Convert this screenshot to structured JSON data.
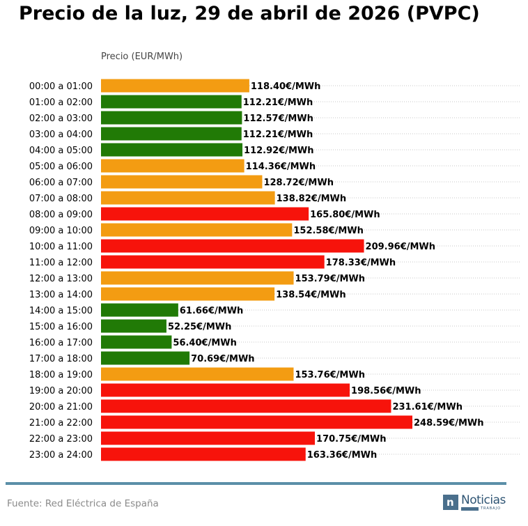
{
  "header": {
    "title": "Precio de la luz, 29 de abril de 2026 (PVPC)"
  },
  "footer": {
    "source": "Fuente: Red Eléctrica de España"
  },
  "logo": {
    "word": "Noticias",
    "sub": "TRABAJO",
    "icon": "n-letter-icon",
    "color": "#4a6f8c"
  },
  "colors": {
    "low": "#217a06",
    "mid": "#f39c12",
    "high": "#f7130b",
    "rule": "#5b8fa8"
  },
  "chart_data": {
    "type": "bar",
    "orientation": "horizontal",
    "title": "Precio de la luz, 29 de abril de 2026 (PVPC)",
    "xlabel": "Precio (EUR/MWh)",
    "ylabel": "",
    "value_suffix": "€/MWh",
    "grid": "dotted horizontal lines",
    "categories": [
      "00:00 a 01:00",
      "01:00 a 02:00",
      "02:00 a 03:00",
      "03:00 a 04:00",
      "04:00 a 05:00",
      "05:00 a 06:00",
      "06:00 a 07:00",
      "07:00 a 08:00",
      "08:00 a 09:00",
      "09:00 a 10:00",
      "10:00 a 11:00",
      "11:00 a 12:00",
      "12:00 a 13:00",
      "13:00 a 14:00",
      "14:00 a 15:00",
      "15:00 a 16:00",
      "16:00 a 17:00",
      "17:00 a 18:00",
      "18:00 a 19:00",
      "19:00 a 20:00",
      "20:00 a 21:00",
      "21:00 a 22:00",
      "22:00 a 23:00",
      "23:00 a 24:00"
    ],
    "values": [
      118.4,
      112.21,
      112.57,
      112.21,
      112.92,
      114.36,
      128.72,
      138.82,
      165.8,
      152.58,
      209.96,
      178.33,
      153.79,
      138.54,
      61.66,
      52.25,
      56.4,
      70.69,
      153.76,
      198.56,
      231.61,
      248.59,
      170.75,
      163.36
    ],
    "labels": [
      "118.40€/MWh",
      "112.21€/MWh",
      "112.57€/MWh",
      "112.21€/MWh",
      "112.92€/MWh",
      "114.36€/MWh",
      "128.72€/MWh",
      "138.82€/MWh",
      "165.80€/MWh",
      "152.58€/MWh",
      "209.96€/MWh",
      "178.33€/MWh",
      "153.79€/MWh",
      "138.54€/MWh",
      "61.66€/MWh",
      "52.25€/MWh",
      "56.40€/MWh",
      "70.69€/MWh",
      "153.76€/MWh",
      "198.56€/MWh",
      "231.61€/MWh",
      "248.59€/MWh",
      "170.75€/MWh",
      "163.36€/MWh"
    ],
    "levels": [
      "mid",
      "low",
      "low",
      "low",
      "low",
      "mid",
      "mid",
      "mid",
      "high",
      "mid",
      "high",
      "high",
      "mid",
      "mid",
      "low",
      "low",
      "low",
      "low",
      "mid",
      "high",
      "high",
      "high",
      "high",
      "high"
    ],
    "xlim": [
      0,
      248.59
    ]
  }
}
